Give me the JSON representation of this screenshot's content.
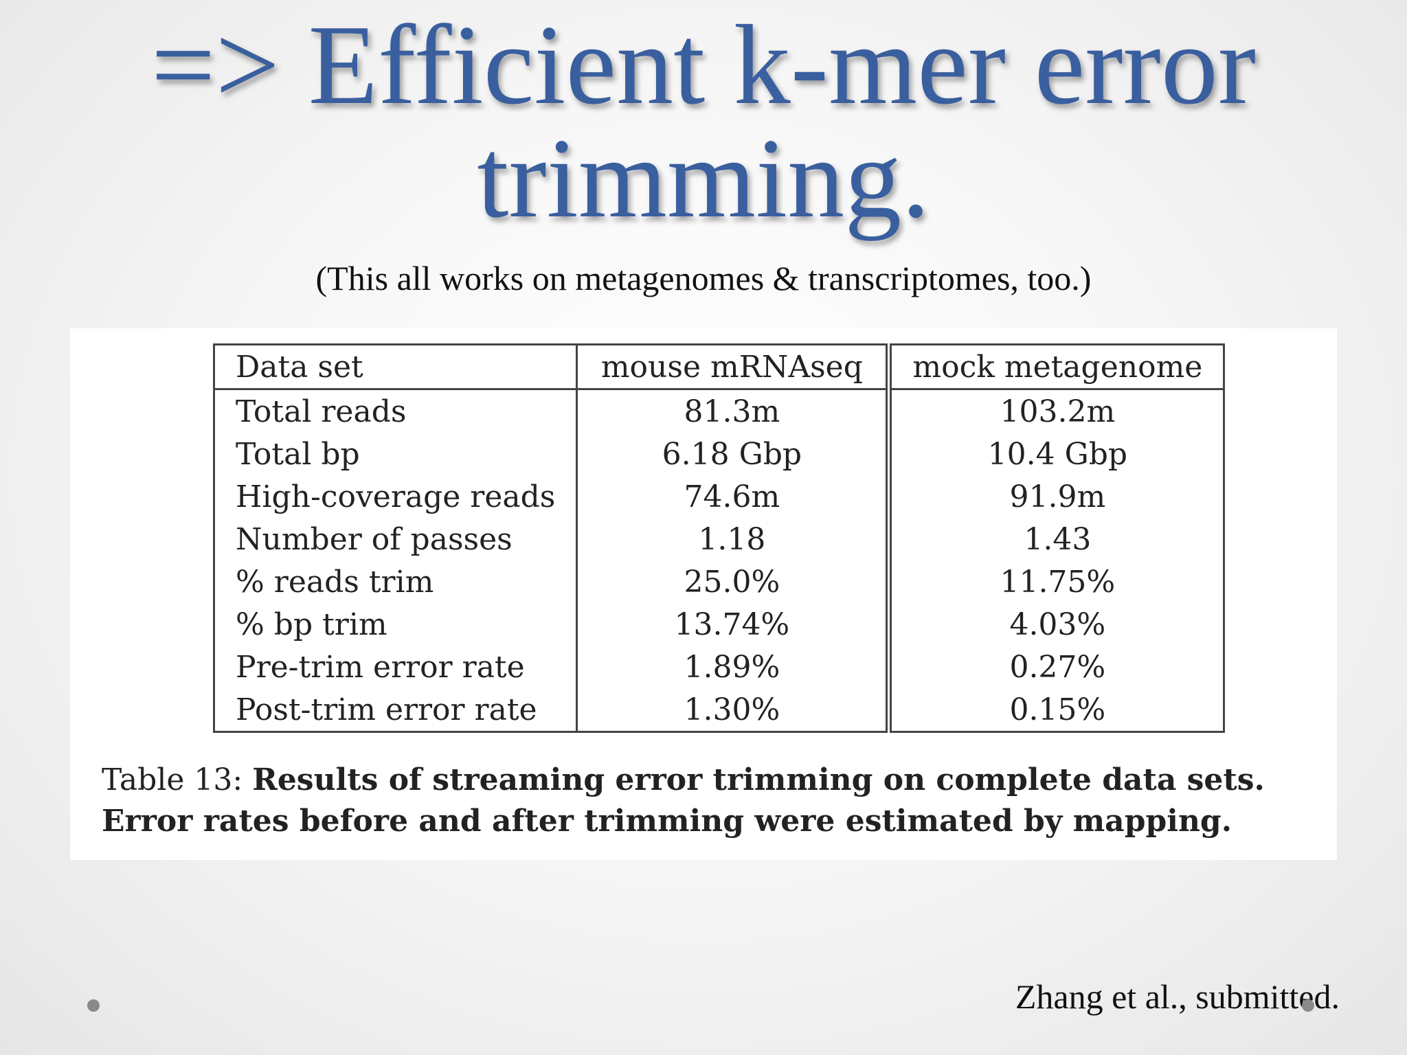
{
  "slide": {
    "title_line1": "=> Efficient k-mer error",
    "title_line2": "trimming.",
    "subtitle": "(This all works on metagenomes & transcriptomes, too.)",
    "citation": "Zhang et al., submitted."
  },
  "table": {
    "headers": [
      "Data set",
      "mouse mRNAseq",
      "mock metagenome"
    ],
    "rows": [
      [
        "Total reads",
        "81.3m",
        "103.2m"
      ],
      [
        "Total bp",
        "6.18 Gbp",
        "10.4 Gbp"
      ],
      [
        "High-coverage reads",
        "74.6m",
        "91.9m"
      ],
      [
        "Number of passes",
        "1.18",
        "1.43"
      ],
      [
        "% reads trim",
        "25.0%",
        "11.75%"
      ],
      [
        "% bp trim",
        "13.74%",
        "4.03%"
      ],
      [
        "Pre-trim error rate",
        "1.89%",
        "0.27%"
      ],
      [
        "Post-trim error rate",
        "1.30%",
        "0.15%"
      ]
    ]
  },
  "caption": {
    "prefix": "Table 13:",
    "text": "Results of streaming error trimming on complete data sets. Error rates before and after trimming were estimated by mapping."
  },
  "colors": {
    "title": "#3a5f9f"
  }
}
